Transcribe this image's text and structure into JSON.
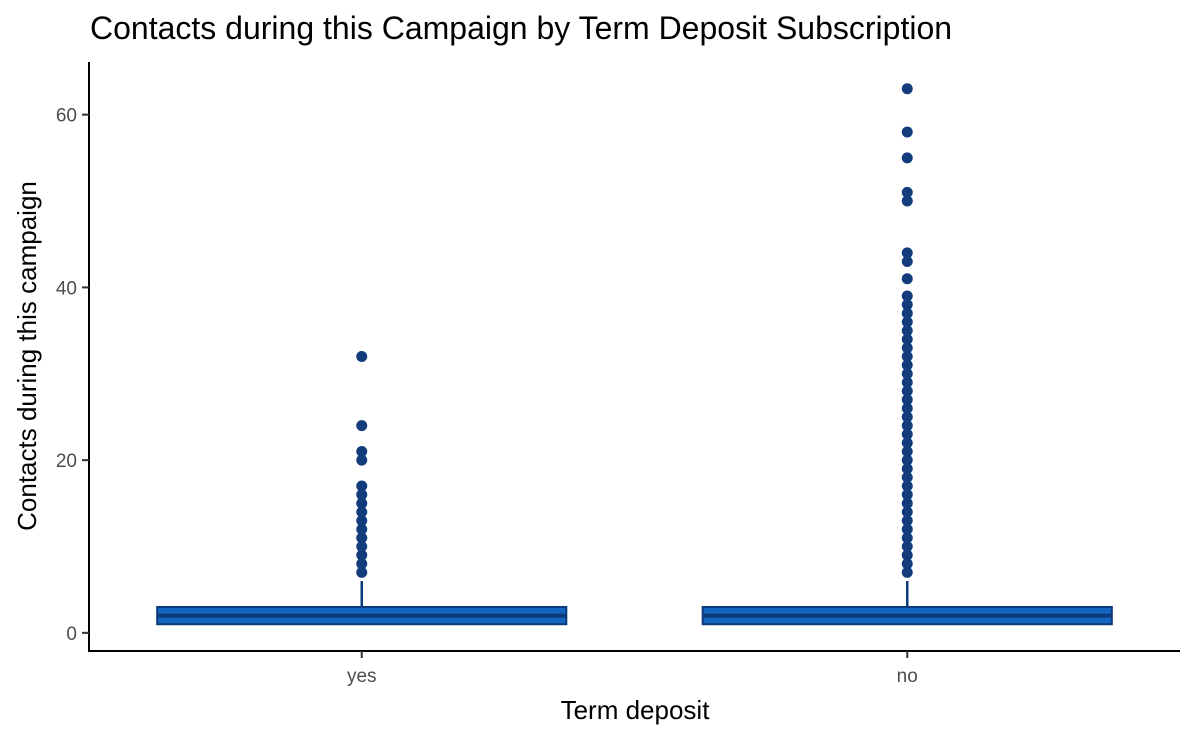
{
  "chart_data": {
    "type": "box",
    "title": "Contacts during this Campaign by Term Deposit Subscription",
    "xlabel": "Term deposit",
    "ylabel": "Contacts during this campaign",
    "categories": [
      "yes",
      "no"
    ],
    "y_ticks": [
      0,
      20,
      40,
      60
    ],
    "ylim": [
      -2.1,
      66.1
    ],
    "grid": false,
    "colors": {
      "box_fill": "#1565c0",
      "box_stroke": "#0d3a7a",
      "point": "#123c7c",
      "axis": "#000000"
    },
    "boxes": [
      {
        "category": "yes",
        "min": 1,
        "q1": 1,
        "median": 2,
        "q3": 3,
        "max": 6,
        "outliers": [
          7,
          8,
          9,
          10,
          11,
          12,
          13,
          14,
          15,
          16,
          17,
          20,
          21,
          24,
          32
        ]
      },
      {
        "category": "no",
        "min": 1,
        "q1": 1,
        "median": 2,
        "q3": 3,
        "max": 6,
        "outliers": [
          7,
          8,
          9,
          10,
          11,
          12,
          13,
          14,
          15,
          16,
          17,
          18,
          19,
          20,
          21,
          22,
          23,
          24,
          25,
          26,
          27,
          28,
          29,
          30,
          31,
          32,
          33,
          34,
          35,
          36,
          37,
          38,
          39,
          41,
          43,
          44,
          50,
          51,
          55,
          58,
          63
        ]
      }
    ]
  }
}
